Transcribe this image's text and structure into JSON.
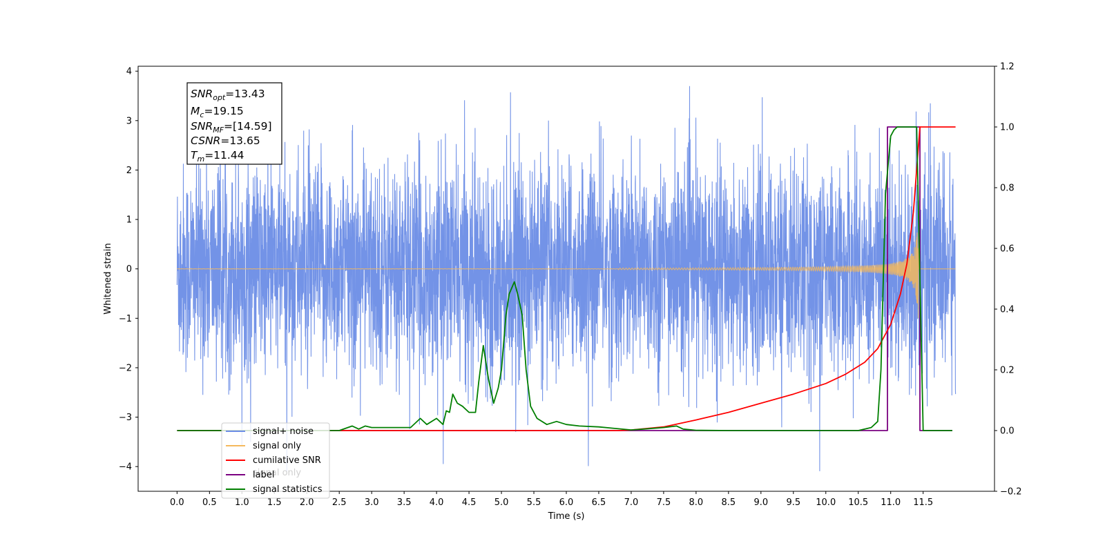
{
  "chart_data": {
    "type": "line",
    "xlabel": "Time (s)",
    "ylabel": "Whitened strain",
    "xlim": [
      -0.6,
      12.6
    ],
    "ylim": [
      -4.5,
      4.1
    ],
    "y2lim": [
      -0.2,
      1.2
    ],
    "xticks": [
      "0.0",
      "0.5",
      "1.0",
      "1.5",
      "2.0",
      "2.5",
      "3.0",
      "3.5",
      "4.0",
      "4.5",
      "5.0",
      "5.5",
      "6.0",
      "6.5",
      "7.0",
      "7.5",
      "8.0",
      "8.5",
      "9.0",
      "9.5",
      "10.0",
      "10.5",
      "11.0",
      "11.5"
    ],
    "yticks": [
      "4",
      "3",
      "2",
      "1",
      "0",
      "−1",
      "−2",
      "−3",
      "−4"
    ],
    "y2ticks": [
      "1.2",
      "1.0",
      "0.8",
      "0.6",
      "0.4",
      "0.2",
      "0.0",
      "−0.2"
    ],
    "info_box": {
      "snr_opt": {
        "base": "SNR",
        "sub": "opt",
        "value": "=13.43"
      },
      "mc": {
        "base": "M",
        "sub": "c",
        "value": "=19.15"
      },
      "snr_mf": {
        "base": "SNR",
        "sub": "MF",
        "value": "=[14.59]"
      },
      "csnr": {
        "base": "CSNR",
        "sub": "",
        "value": "=13.65"
      },
      "tm": {
        "base": "T",
        "sub": "m",
        "value": "=11.44"
      }
    },
    "legend": {
      "placement": "lower-left",
      "items": [
        "signal+ noise",
        "signal only",
        "cumilative SNR",
        "label",
        "signal statistics"
      ],
      "ghost_label": "signal only"
    },
    "series": [
      {
        "name": "signal+ noise",
        "axis": "left",
        "color": "#6c8de6",
        "description_range": [
          -4.1,
          3.7
        ],
        "x_range": [
          0.0,
          12.0
        ]
      },
      {
        "name": "signal only",
        "axis": "left",
        "color": "#f5b85c",
        "x_range": [
          0.0,
          12.0
        ],
        "peak_time": 11.44
      },
      {
        "name": "cumilative SNR",
        "axis": "right",
        "color": "#ff0000",
        "x": [
          0.0,
          6.8,
          7.0,
          7.5,
          8.0,
          8.5,
          9.0,
          9.5,
          10.0,
          10.3,
          10.6,
          10.8,
          11.0,
          11.15,
          11.25,
          11.35,
          11.44,
          11.45,
          11.5,
          12.0
        ],
        "y": [
          0.0,
          0.0,
          0.002,
          0.012,
          0.035,
          0.06,
          0.09,
          0.12,
          0.155,
          0.185,
          0.225,
          0.27,
          0.35,
          0.45,
          0.55,
          0.72,
          0.97,
          1.0,
          1.0,
          1.0
        ]
      },
      {
        "name": "label",
        "axis": "right",
        "color": "#7a0080",
        "x": [
          0.0,
          10.95,
          10.95,
          11.45,
          11.45,
          11.95
        ],
        "y": [
          0.0,
          0.0,
          1.0,
          1.0,
          0.0,
          0.0
        ]
      },
      {
        "name": "signal statistics",
        "axis": "right",
        "color": "#007f00",
        "x": [
          0.0,
          2.5,
          2.7,
          2.8,
          2.9,
          3.0,
          3.3,
          3.6,
          3.75,
          3.85,
          4.0,
          4.1,
          4.15,
          4.2,
          4.25,
          4.32,
          4.4,
          4.5,
          4.6,
          4.65,
          4.72,
          4.8,
          4.88,
          4.95,
          5.0,
          5.07,
          5.12,
          5.2,
          5.25,
          5.32,
          5.38,
          5.45,
          5.55,
          5.7,
          5.85,
          6.0,
          6.2,
          6.5,
          7.0,
          7.2,
          7.5,
          7.7,
          7.8,
          8.0,
          8.5,
          9.0,
          9.5,
          10.0,
          10.5,
          10.7,
          10.8,
          10.85,
          10.92,
          11.0,
          11.05,
          11.1,
          11.2,
          11.4,
          11.45,
          11.5,
          11.95
        ],
        "y": [
          0.0,
          0.0,
          0.015,
          0.005,
          0.015,
          0.01,
          0.01,
          0.01,
          0.04,
          0.02,
          0.04,
          0.02,
          0.065,
          0.06,
          0.12,
          0.09,
          0.08,
          0.06,
          0.06,
          0.16,
          0.28,
          0.17,
          0.09,
          0.14,
          0.2,
          0.38,
          0.45,
          0.49,
          0.45,
          0.38,
          0.2,
          0.08,
          0.04,
          0.02,
          0.03,
          0.02,
          0.015,
          0.012,
          0.002,
          0.005,
          0.01,
          0.015,
          0.005,
          0.001,
          0.0,
          0.0,
          0.0,
          0.0,
          0.0,
          0.01,
          0.03,
          0.2,
          0.78,
          0.97,
          0.99,
          1.0,
          1.0,
          1.0,
          0.5,
          0.0,
          0.0
        ]
      }
    ]
  }
}
